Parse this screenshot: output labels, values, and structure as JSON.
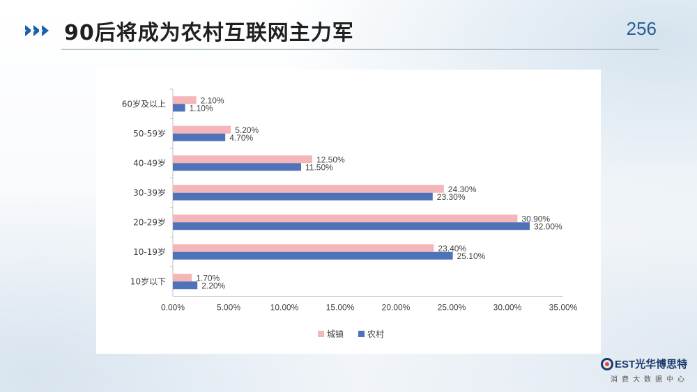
{
  "header": {
    "title": "90后将成为农村互联网主力军",
    "page_number": "256"
  },
  "logo": {
    "brand": "EST光华博思特",
    "subtitle": "消费大数据中心"
  },
  "colors": {
    "urban": "#f4b6b8",
    "rural": "#4f72b8",
    "accent": "#1b5fa8"
  },
  "chart_data": {
    "type": "bar",
    "orientation": "horizontal",
    "categories": [
      "60岁及以上",
      "50-59岁",
      "40-49岁",
      "30-39岁",
      "20-29岁",
      "10-19岁",
      "10岁以下"
    ],
    "series": [
      {
        "name": "城镇",
        "values": [
          2.1,
          5.2,
          12.5,
          24.3,
          30.9,
          23.4,
          1.7
        ],
        "labels": [
          "2.10%",
          "5.20%",
          "12.50%",
          "24.30%",
          "30.90%",
          "23.40%",
          "1.70%"
        ]
      },
      {
        "name": "农村",
        "values": [
          1.1,
          4.7,
          11.5,
          23.3,
          32.0,
          25.1,
          2.2
        ],
        "labels": [
          "1.10%",
          "4.70%",
          "11.50%",
          "23.30%",
          "32.00%",
          "25.10%",
          "2.20%"
        ]
      }
    ],
    "xlim": [
      0,
      35
    ],
    "xticks": [
      "0.00%",
      "5.00%",
      "10.00%",
      "15.00%",
      "20.00%",
      "25.00%",
      "30.00%",
      "35.00%"
    ],
    "legend": [
      "城镇",
      "农村"
    ],
    "legend_position": "bottom",
    "grid": false
  }
}
